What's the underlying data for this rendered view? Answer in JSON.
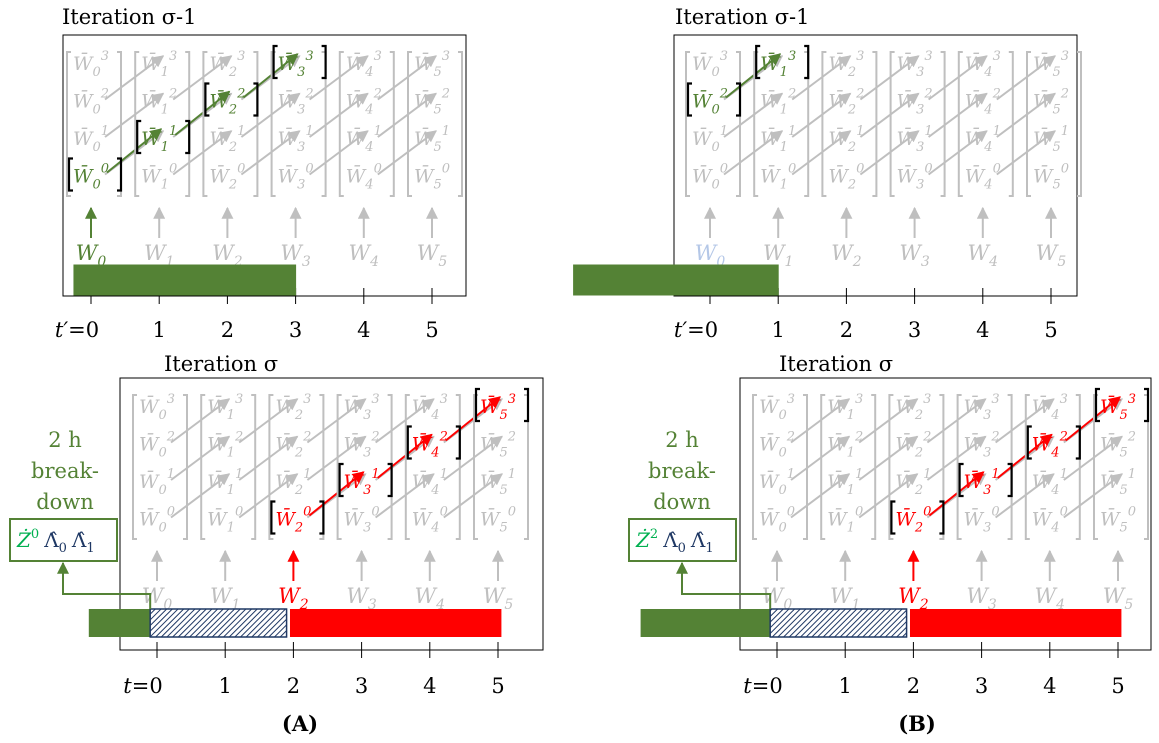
{
  "colors": {
    "green": "#548235",
    "red": "#ff0000",
    "gray": "#bfbfbf",
    "navy": "#1f3864",
    "lightgreen": "#00b050"
  },
  "panels": [
    {
      "label": "(A)",
      "top": {
        "title": "Iteration σ-1",
        "axis_prefix": "t′",
        "ticks": [
          "=0",
          "1",
          "2",
          "3",
          "4",
          "5"
        ],
        "highlight_cells": [
          [
            0,
            0
          ],
          [
            1,
            1
          ],
          [
            2,
            2
          ],
          [
            3,
            3
          ]
        ],
        "input_highlight": 0,
        "bar": {
          "from": -0.25,
          "to": 3
        }
      },
      "bottom": {
        "title": "Iteration σ",
        "axis_prefix": "t",
        "ticks": [
          "=0",
          "1",
          "2",
          "3",
          "4",
          "5"
        ],
        "highlight_cells": [
          [
            2,
            0
          ],
          [
            3,
            1
          ],
          [
            4,
            2
          ],
          [
            5,
            3
          ]
        ],
        "input_highlight": 2,
        "bars": {
          "green_from": -1,
          "hatch_from": -0.1,
          "hatch_to": 1.9,
          "red_from": 1.95,
          "red_to": 5.05
        },
        "breakdown_label": [
          "2 h",
          "break-",
          "down"
        ],
        "box": {
          "z": "Ż",
          "sup": "0",
          "l0": "Λ̂",
          "l0_sub": "0",
          "l1": "Λ̂",
          "l1_sub": "1"
        }
      }
    },
    {
      "label": "(B)",
      "top": {
        "title": "Iteration σ-1",
        "axis_prefix": "t′",
        "ticks": [
          "=0",
          "1",
          "2",
          "3",
          "4",
          "5"
        ],
        "highlight_cells": [
          [
            0,
            2
          ],
          [
            1,
            3
          ]
        ],
        "input_highlight": -1,
        "bar": {
          "from": -2,
          "to": 1
        }
      },
      "bottom": {
        "title": "Iteration σ",
        "axis_prefix": "t",
        "ticks": [
          "=0",
          "1",
          "2",
          "3",
          "4",
          "5"
        ],
        "highlight_cells": [
          [
            2,
            0
          ],
          [
            3,
            1
          ],
          [
            4,
            2
          ],
          [
            5,
            3
          ]
        ],
        "input_highlight": 2,
        "bars": {
          "green_from": -2,
          "hatch_from": -0.1,
          "hatch_to": 1.9,
          "red_from": 1.95,
          "red_to": 5.05
        },
        "breakdown_label": [
          "2 h",
          "break-",
          "down"
        ],
        "box": {
          "z": "Ż",
          "sup": "2",
          "l0": "Λ̂",
          "l0_sub": "0",
          "l1": "Λ̂",
          "l1_sub": "1"
        }
      }
    }
  ]
}
